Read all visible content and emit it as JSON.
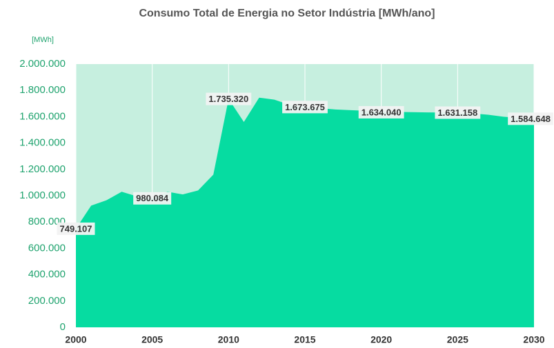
{
  "chart_data": {
    "type": "area",
    "title": "Consumo Total de Energia no Setor Indústria [MWh/ano]",
    "y_label": "[MWh]",
    "x": [
      2000,
      2001,
      2002,
      2003,
      2004,
      2005,
      2006,
      2007,
      2008,
      2009,
      2010,
      2011,
      2012,
      2013,
      2014,
      2015,
      2016,
      2017,
      2018,
      2019,
      2020,
      2021,
      2022,
      2023,
      2024,
      2025,
      2026,
      2027,
      2028,
      2029,
      2030
    ],
    "values": [
      749107,
      925000,
      965000,
      1030000,
      995000,
      980084,
      1030000,
      1010000,
      1040000,
      1160000,
      1735320,
      1560000,
      1745000,
      1730000,
      1690000,
      1673675,
      1665000,
      1655000,
      1650000,
      1645000,
      1634040,
      1637000,
      1635000,
      1633000,
      1632000,
      1631158,
      1625000,
      1615000,
      1600000,
      1592000,
      1584648
    ],
    "value_labels": [
      "749.107",
      null,
      null,
      null,
      null,
      "980.084",
      null,
      null,
      null,
      null,
      "1.735.320",
      null,
      null,
      null,
      null,
      "1.673.675",
      null,
      null,
      null,
      null,
      "1.634.040",
      null,
      null,
      null,
      null,
      "1.631.158",
      null,
      null,
      null,
      null,
      "1.584.648"
    ],
    "color": "#06dca1",
    "background": "#c6efdf",
    "xlim": [
      2000,
      2030
    ],
    "xticks": [
      2000,
      2005,
      2010,
      2015,
      2020,
      2025,
      2030
    ],
    "ylim": [
      0,
      2000000
    ],
    "yticks": [
      0,
      {
        "value": 200000,
        "label": "200.000"
      },
      {
        "value": 400000,
        "label": "400.000"
      },
      {
        "value": 600000,
        "label": "600.000"
      },
      {
        "value": 800000,
        "label": "800.000"
      },
      {
        "value": 1000000,
        "label": "1.000.000"
      },
      {
        "value": 1200000,
        "label": "1.200.000"
      },
      {
        "value": 1400000,
        "label": "1.400.000"
      },
      {
        "value": 1600000,
        "label": "1.600.000"
      },
      {
        "value": 1800000,
        "label": "1.800.000"
      },
      {
        "value": 2000000,
        "label": "2.000.000"
      }
    ],
    "grid": true
  }
}
